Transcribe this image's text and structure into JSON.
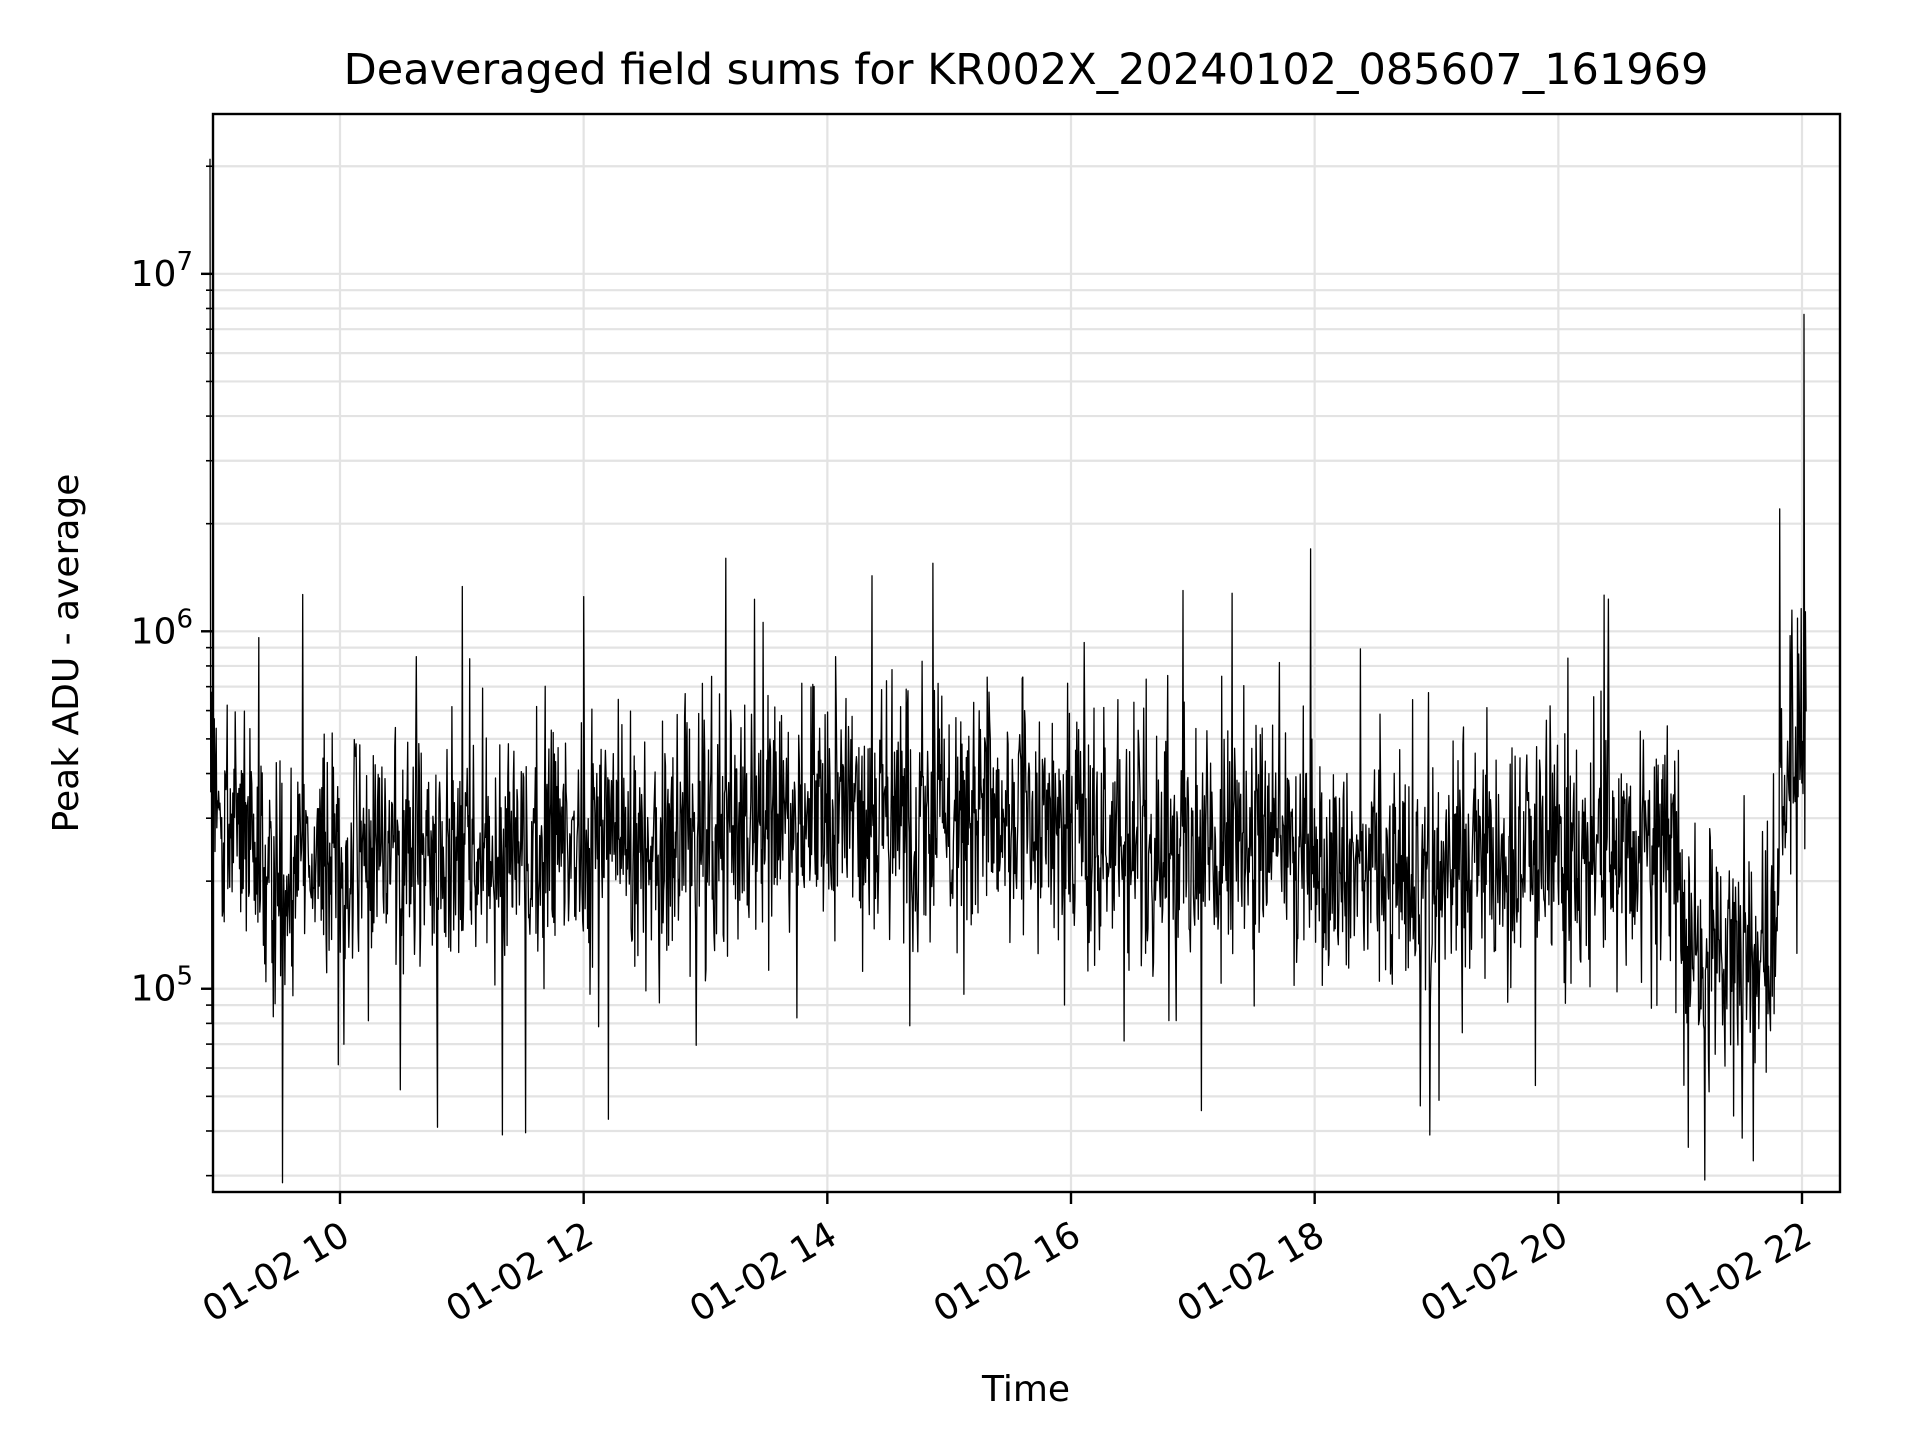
{
  "chart_data": {
    "type": "line",
    "title": "Deaveraged field sums for KR002X_20240102_085607_161969",
    "xlabel": "Time",
    "ylabel": "Peak ADU - average",
    "x_axis": {
      "type": "time",
      "range": [
        "2024-01-02T08:56",
        "2024-01-02T22:00"
      ],
      "ticks": [
        {
          "value": "2024-01-02T10:00",
          "label": "01-02 10"
        },
        {
          "value": "2024-01-02T12:00",
          "label": "01-02 12"
        },
        {
          "value": "2024-01-02T14:00",
          "label": "01-02 14"
        },
        {
          "value": "2024-01-02T16:00",
          "label": "01-02 16"
        },
        {
          "value": "2024-01-02T18:00",
          "label": "01-02 18"
        },
        {
          "value": "2024-01-02T20:00",
          "label": "01-02 20"
        },
        {
          "value": "2024-01-02T22:00",
          "label": "01-02 22"
        }
      ]
    },
    "y_axis": {
      "scale": "log",
      "range": [
        27000,
        28000000
      ],
      "ticks": [
        {
          "value": 100000,
          "base": "10",
          "exp": "5"
        },
        {
          "value": 1000000,
          "base": "10",
          "exp": "6"
        },
        {
          "value": 10000000,
          "base": "10",
          "exp": "7"
        }
      ]
    },
    "grid": true,
    "line_color": "#000000",
    "series": [
      {
        "x": [
          "08:56",
          "09:02",
          "09:10",
          "09:18",
          "09:25",
          "09:30",
          "09:36",
          "09:45",
          "09:55",
          "10:05",
          "10:15",
          "10:30",
          "10:45",
          "11:00",
          "11:15",
          "11:30",
          "11:45",
          "12:00",
          "12:15",
          "12:30",
          "12:45",
          "13:00",
          "13:15",
          "13:30",
          "13:45",
          "14:00",
          "14:15",
          "14:30",
          "14:45",
          "15:00",
          "15:15",
          "15:30",
          "15:45",
          "16:00",
          "16:15",
          "16:30",
          "16:45",
          "17:00",
          "17:15",
          "17:30",
          "17:45",
          "18:00",
          "18:15",
          "18:30",
          "18:45",
          "19:00",
          "19:15",
          "19:30",
          "19:45",
          "20:00",
          "20:15",
          "20:30",
          "20:45",
          "20:58",
          "21:05",
          "21:15",
          "21:25",
          "21:35",
          "21:45",
          "21:50",
          "21:55",
          "22:00",
          "22:02"
        ],
        "y": [
          320000,
          280000,
          300000,
          220000,
          190000,
          200000,
          210000,
          250000,
          240000,
          230000,
          250000,
          260000,
          240000,
          240000,
          230000,
          240000,
          250000,
          260000,
          260000,
          250000,
          270000,
          290000,
          300000,
          300000,
          290000,
          310000,
          320000,
          300000,
          310000,
          300000,
          310000,
          290000,
          280000,
          280000,
          270000,
          260000,
          250000,
          260000,
          250000,
          240000,
          250000,
          240000,
          230000,
          230000,
          220000,
          220000,
          230000,
          220000,
          230000,
          230000,
          240000,
          240000,
          250000,
          260000,
          130000,
          120000,
          110000,
          120000,
          120000,
          400000,
          500000,
          550000,
          560000
        ],
        "spikes": [
          {
            "x": "08:56",
            "y": 21000000
          },
          {
            "x": "09:20",
            "y": 960000
          },
          {
            "x": "10:48",
            "y": 41000
          },
          {
            "x": "11:20",
            "y": 39000
          },
          {
            "x": "12:00",
            "y": 1250000
          },
          {
            "x": "13:10",
            "y": 1600000
          },
          {
            "x": "14:22",
            "y": 1430000
          },
          {
            "x": "14:52",
            "y": 1550000
          },
          {
            "x": "17:58",
            "y": 1700000
          },
          {
            "x": "18:52",
            "y": 47000
          },
          {
            "x": "21:04",
            "y": 36000
          },
          {
            "x": "21:36",
            "y": 33000
          },
          {
            "x": "21:49",
            "y": 2200000
          },
          {
            "x": "22:01",
            "y": 7700000
          }
        ]
      }
    ]
  }
}
